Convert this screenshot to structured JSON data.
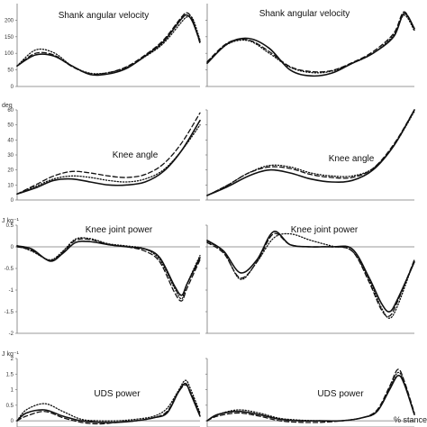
{
  "figure": {
    "stance_label": "% stance",
    "line_styles": [
      "solid",
      "dashed",
      "dotted"
    ],
    "color": "#111111"
  },
  "chart_data": [
    {
      "type": "line",
      "title": "Shank angular velocity",
      "ylabel": "",
      "ylim": [
        0,
        250
      ],
      "yticks": [
        0,
        50,
        100,
        150,
        200
      ],
      "xlim": [
        0,
        100
      ],
      "grid": false,
      "series": [
        {
          "style": "solid",
          "x": [
            0,
            10,
            20,
            30,
            40,
            50,
            60,
            70,
            80,
            90,
            93,
            96,
            100
          ],
          "values": [
            62,
            95,
            92,
            62,
            36,
            38,
            55,
            92,
            135,
            205,
            215,
            195,
            135
          ]
        },
        {
          "style": "dashed",
          "x": [
            0,
            10,
            20,
            30,
            40,
            50,
            60,
            70,
            80,
            90,
            93,
            96,
            100
          ],
          "values": [
            62,
            100,
            95,
            60,
            38,
            42,
            60,
            95,
            140,
            210,
            222,
            200,
            130
          ]
        },
        {
          "style": "dotted",
          "x": [
            0,
            10,
            20,
            30,
            40,
            50,
            60,
            70,
            80,
            90,
            93,
            96,
            100
          ],
          "values": [
            62,
            110,
            102,
            62,
            40,
            42,
            58,
            90,
            130,
            195,
            210,
            205,
            140
          ]
        }
      ]
    },
    {
      "type": "line",
      "title": "Shank angular velocity",
      "ylabel": "",
      "ylim": [
        0,
        250
      ],
      "yticks": [
        0,
        50,
        100,
        150,
        200
      ],
      "xlim": [
        0,
        100
      ],
      "grid": false,
      "series": [
        {
          "style": "solid",
          "x": [
            0,
            10,
            20,
            30,
            40,
            50,
            60,
            70,
            80,
            90,
            95,
            100
          ],
          "values": [
            70,
            130,
            145,
            115,
            50,
            32,
            40,
            70,
            100,
            150,
            220,
            175
          ]
        },
        {
          "style": "dashed",
          "x": [
            0,
            10,
            20,
            30,
            40,
            50,
            60,
            70,
            80,
            90,
            95,
            100
          ],
          "values": [
            75,
            132,
            140,
            105,
            60,
            45,
            48,
            72,
            105,
            160,
            225,
            170
          ]
        },
        {
          "style": "dotted",
          "x": [
            0,
            10,
            20,
            30,
            40,
            50,
            60,
            70,
            80,
            90,
            95,
            100
          ],
          "values": [
            72,
            128,
            138,
            100,
            58,
            42,
            46,
            70,
            100,
            155,
            215,
            168
          ]
        }
      ]
    },
    {
      "type": "line",
      "title": "Knee angle",
      "ylabel": "deg",
      "ylim": [
        0,
        60
      ],
      "yticks": [
        0,
        10,
        20,
        30,
        40,
        50,
        60
      ],
      "xlim": [
        0,
        100
      ],
      "grid": false,
      "series": [
        {
          "style": "solid",
          "x": [
            0,
            10,
            20,
            30,
            40,
            50,
            60,
            70,
            80,
            90,
            100
          ],
          "values": [
            4,
            8,
            13,
            14,
            12,
            10,
            10,
            12,
            19,
            33,
            53
          ]
        },
        {
          "style": "dashed",
          "x": [
            0,
            10,
            20,
            30,
            40,
            50,
            60,
            70,
            80,
            90,
            100
          ],
          "values": [
            4,
            10,
            16,
            19,
            18,
            16,
            15,
            17,
            24,
            38,
            58
          ]
        },
        {
          "style": "dotted",
          "x": [
            0,
            10,
            20,
            30,
            40,
            50,
            60,
            70,
            80,
            90,
            100
          ],
          "values": [
            4,
            9,
            14,
            16,
            15,
            13,
            12,
            14,
            20,
            33,
            50
          ]
        }
      ]
    },
    {
      "type": "line",
      "title": "Knee angle",
      "ylabel": "",
      "ylim": [
        0,
        60
      ],
      "yticks": [
        0,
        10,
        20,
        30,
        40,
        50,
        60
      ],
      "xlim": [
        0,
        100
      ],
      "grid": false,
      "series": [
        {
          "style": "solid",
          "x": [
            0,
            10,
            20,
            30,
            40,
            50,
            60,
            70,
            80,
            90,
            100
          ],
          "values": [
            3,
            9,
            16,
            20,
            18,
            14,
            12,
            13,
            20,
            36,
            60
          ]
        },
        {
          "style": "dashed",
          "x": [
            0,
            10,
            20,
            30,
            40,
            50,
            60,
            70,
            80,
            90,
            100
          ],
          "values": [
            3,
            10,
            18,
            22,
            21,
            17,
            15,
            15,
            21,
            37,
            60
          ]
        },
        {
          "style": "dotted",
          "x": [
            0,
            10,
            20,
            30,
            40,
            50,
            60,
            70,
            80,
            90,
            100
          ],
          "values": [
            3,
            10,
            18,
            23,
            22,
            18,
            16,
            16,
            21,
            36,
            59
          ]
        }
      ]
    },
    {
      "type": "line",
      "title": "Knee joint power",
      "ylabel": "J kg⁻¹",
      "ylim": [
        -2,
        0.5
      ],
      "yticks": [
        0.5,
        0,
        -0.5,
        -1,
        -1.5,
        -2
      ],
      "xlim": [
        0,
        100
      ],
      "grid": false,
      "series": [
        {
          "style": "solid",
          "x": [
            0,
            8,
            18,
            25,
            32,
            40,
            50,
            60,
            70,
            78,
            86,
            90,
            93,
            100
          ],
          "values": [
            0.02,
            -0.05,
            -0.33,
            -0.15,
            0.1,
            0.12,
            0.05,
            0.0,
            -0.05,
            -0.25,
            -0.9,
            -1.12,
            -0.85,
            -0.25
          ]
        },
        {
          "style": "dashed",
          "x": [
            0,
            8,
            18,
            25,
            32,
            40,
            50,
            60,
            70,
            78,
            86,
            90,
            93,
            100
          ],
          "values": [
            0.0,
            -0.08,
            -0.32,
            -0.12,
            0.15,
            0.17,
            0.05,
            0.0,
            -0.1,
            -0.35,
            -1.05,
            -1.25,
            -0.95,
            -0.3
          ]
        },
        {
          "style": "dotted",
          "x": [
            0,
            8,
            18,
            25,
            32,
            40,
            50,
            60,
            70,
            78,
            86,
            90,
            93,
            100
          ],
          "values": [
            0.03,
            -0.1,
            -0.3,
            -0.1,
            0.18,
            0.19,
            0.07,
            0.02,
            -0.05,
            -0.3,
            -0.95,
            -1.2,
            -0.85,
            -0.2
          ]
        }
      ]
    },
    {
      "type": "line",
      "title": "Knee joint power",
      "ylabel": "",
      "ylim": [
        -2,
        0.5
      ],
      "yticks": [
        0.5,
        0,
        -0.5,
        -1,
        -1.5,
        -2
      ],
      "xlim": [
        0,
        100
      ],
      "grid": false,
      "series": [
        {
          "style": "solid",
          "x": [
            0,
            8,
            16,
            24,
            32,
            40,
            50,
            60,
            70,
            78,
            84,
            88,
            92,
            100
          ],
          "values": [
            0.15,
            -0.1,
            -0.6,
            -0.3,
            0.35,
            0.05,
            0.0,
            0.0,
            -0.05,
            -0.7,
            -1.3,
            -1.5,
            -1.2,
            -0.35
          ]
        },
        {
          "style": "dashed",
          "x": [
            0,
            8,
            16,
            24,
            32,
            40,
            50,
            60,
            70,
            78,
            84,
            88,
            92,
            100
          ],
          "values": [
            0.1,
            -0.15,
            -0.72,
            -0.35,
            0.3,
            0.05,
            0.0,
            0.0,
            -0.1,
            -0.8,
            -1.45,
            -1.6,
            -1.25,
            -0.3
          ]
        },
        {
          "style": "dotted",
          "x": [
            0,
            8,
            16,
            24,
            32,
            40,
            50,
            60,
            70,
            78,
            84,
            88,
            92,
            100
          ],
          "values": [
            0.12,
            -0.12,
            -0.75,
            -0.35,
            0.2,
            0.3,
            0.15,
            0.02,
            -0.1,
            -0.75,
            -1.4,
            -1.65,
            -1.35,
            -0.3
          ]
        }
      ]
    },
    {
      "type": "line",
      "title": "UDS power",
      "ylabel": "J kg⁻¹",
      "ylim": [
        -0.2,
        2
      ],
      "yticks": [
        2,
        1.5,
        1,
        0.5,
        0
      ],
      "xlim": [
        0,
        100
      ],
      "grid": false,
      "series": [
        {
          "style": "solid",
          "x": [
            0,
            5,
            15,
            25,
            35,
            45,
            55,
            65,
            75,
            82,
            88,
            92,
            95,
            100
          ],
          "values": [
            0.0,
            0.25,
            0.35,
            0.15,
            0.0,
            -0.05,
            -0.05,
            0.0,
            0.1,
            0.25,
            0.9,
            1.2,
            0.85,
            0.15
          ]
        },
        {
          "style": "dashed",
          "x": [
            0,
            5,
            15,
            25,
            35,
            45,
            55,
            65,
            75,
            82,
            88,
            92,
            95,
            100
          ],
          "values": [
            0.0,
            0.15,
            0.3,
            0.1,
            -0.05,
            -0.1,
            -0.05,
            0.0,
            0.1,
            0.3,
            0.9,
            1.15,
            0.9,
            0.2
          ]
        },
        {
          "style": "dotted",
          "x": [
            0,
            5,
            15,
            25,
            35,
            45,
            55,
            65,
            75,
            82,
            88,
            92,
            95,
            100
          ],
          "values": [
            0.0,
            0.35,
            0.55,
            0.3,
            0.05,
            0.0,
            0.0,
            0.05,
            0.15,
            0.4,
            0.95,
            1.3,
            1.0,
            0.25
          ]
        }
      ]
    },
    {
      "type": "line",
      "title": "UDS power",
      "ylabel": "",
      "ylim": [
        -0.2,
        2
      ],
      "yticks": [
        2,
        1.5,
        1,
        0.5,
        0
      ],
      "xlim": [
        0,
        100
      ],
      "grid": false,
      "series": [
        {
          "style": "solid",
          "x": [
            0,
            5,
            15,
            25,
            35,
            45,
            55,
            65,
            75,
            82,
            88,
            92,
            95,
            100
          ],
          "values": [
            0.0,
            0.2,
            0.3,
            0.2,
            0.05,
            0.0,
            0.0,
            0.0,
            0.1,
            0.3,
            1.0,
            1.45,
            1.2,
            0.2
          ]
        },
        {
          "style": "dashed",
          "x": [
            0,
            5,
            15,
            25,
            35,
            45,
            55,
            65,
            75,
            82,
            88,
            92,
            95,
            100
          ],
          "values": [
            0.0,
            0.15,
            0.25,
            0.15,
            0.0,
            -0.05,
            -0.05,
            0.0,
            0.1,
            0.35,
            1.1,
            1.65,
            1.3,
            0.25
          ]
        },
        {
          "style": "dotted",
          "x": [
            0,
            5,
            15,
            25,
            35,
            45,
            55,
            65,
            75,
            82,
            88,
            92,
            95,
            100
          ],
          "values": [
            0.0,
            0.2,
            0.35,
            0.25,
            0.08,
            0.02,
            0.0,
            0.0,
            0.1,
            0.3,
            1.05,
            1.55,
            1.25,
            0.2
          ]
        }
      ]
    }
  ]
}
